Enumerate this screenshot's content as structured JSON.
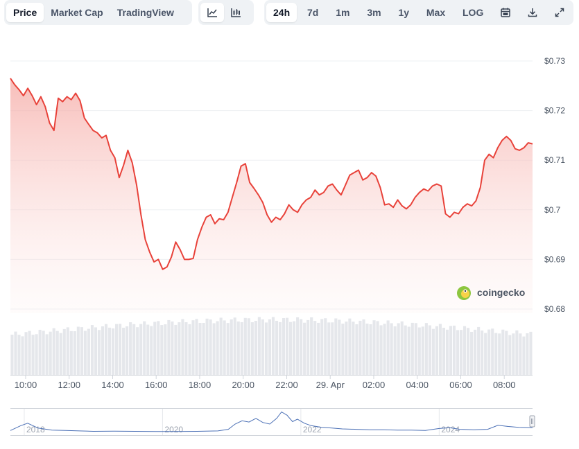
{
  "toolbar": {
    "views": [
      {
        "label": "Price",
        "active": true
      },
      {
        "label": "Market Cap",
        "active": false
      },
      {
        "label": "TradingView",
        "active": false
      }
    ],
    "chart_types": [
      {
        "icon": "line-chart-icon",
        "active": true
      },
      {
        "icon": "candlestick-chart-icon",
        "active": false
      }
    ],
    "ranges": [
      {
        "label": "24h",
        "active": true
      },
      {
        "label": "7d",
        "active": false
      },
      {
        "label": "1m",
        "active": false
      },
      {
        "label": "3m",
        "active": false
      },
      {
        "label": "1y",
        "active": false
      },
      {
        "label": "Max",
        "active": false
      },
      {
        "label": "LOG",
        "active": false
      }
    ],
    "tools": [
      {
        "icon": "calendar-icon"
      },
      {
        "icon": "download-icon"
      },
      {
        "icon": "expand-icon"
      }
    ]
  },
  "watermark": {
    "text": "coingecko",
    "icon": "coingecko-logo-icon"
  },
  "colors": {
    "line": "#e8423a",
    "fill": "#fad4d2",
    "volume": "#e5e7eb",
    "navigator": "#4a6fb5"
  },
  "chart_data": {
    "type": "area",
    "y_ticks": [
      "$0.73",
      "$0.72",
      "$0.71",
      "$0.7",
      "$0.69",
      "$0.68"
    ],
    "y_tick_values": [
      0.73,
      0.72,
      0.71,
      0.7,
      0.69,
      0.68
    ],
    "ylim": [
      0.68,
      0.73
    ],
    "x_ticks": [
      "10:00",
      "12:00",
      "14:00",
      "16:00",
      "18:00",
      "20:00",
      "22:00",
      "29. Apr",
      "02:00",
      "04:00",
      "06:00",
      "08:00"
    ],
    "x_tick_hours": [
      10,
      12,
      14,
      16,
      18,
      20,
      22,
      24,
      26,
      28,
      30,
      32
    ],
    "xlim_hours": [
      9.3,
      33.3
    ],
    "series": [
      {
        "hours": [
          9.3,
          9.5,
          9.7,
          9.9,
          10.1,
          10.3,
          10.5,
          10.7,
          10.9,
          11.1,
          11.3,
          11.5,
          11.7,
          11.9,
          12.1,
          12.3,
          12.5,
          12.7,
          12.9,
          13.1,
          13.3,
          13.5,
          13.7,
          13.9,
          14.1,
          14.3,
          14.5,
          14.7,
          14.9,
          15.1,
          15.3,
          15.5,
          15.7,
          15.9,
          16.1,
          16.3,
          16.5,
          16.7,
          16.9,
          17.1,
          17.3,
          17.5,
          17.7,
          17.9,
          18.1,
          18.3,
          18.5,
          18.7,
          18.9,
          19.1,
          19.3,
          19.5,
          19.7,
          19.9,
          20.1,
          20.3,
          20.5,
          20.7,
          20.9,
          21.1,
          21.3,
          21.5,
          21.7,
          21.9,
          22.1,
          22.3,
          22.5,
          22.7,
          22.9,
          23.1,
          23.3,
          23.5,
          23.7,
          23.9,
          24.1,
          24.3,
          24.5,
          24.7,
          24.9,
          25.1,
          25.3,
          25.5,
          25.7,
          25.9,
          26.1,
          26.3,
          26.5,
          26.7,
          26.9,
          27.1,
          27.3,
          27.5,
          27.7,
          27.9,
          28.1,
          28.3,
          28.5,
          28.7,
          28.9,
          29.1,
          29.3,
          29.5,
          29.7,
          29.9,
          30.1,
          30.3,
          30.5,
          30.7,
          30.9,
          31.1,
          31.3,
          31.5,
          31.7,
          31.9,
          32.1,
          32.3,
          32.5,
          32.7,
          32.9,
          33.1,
          33.3
        ],
        "values": [
          0.7265,
          0.7252,
          0.7242,
          0.723,
          0.7245,
          0.723,
          0.7212,
          0.7228,
          0.7208,
          0.7175,
          0.716,
          0.7225,
          0.7218,
          0.7228,
          0.7222,
          0.7235,
          0.722,
          0.7185,
          0.7172,
          0.716,
          0.7155,
          0.7145,
          0.715,
          0.712,
          0.7105,
          0.7065,
          0.709,
          0.712,
          0.7095,
          0.705,
          0.699,
          0.694,
          0.6915,
          0.6895,
          0.69,
          0.688,
          0.6885,
          0.6905,
          0.6935,
          0.692,
          0.69,
          0.69,
          0.6902,
          0.694,
          0.6965,
          0.6985,
          0.699,
          0.6972,
          0.6982,
          0.698,
          0.6995,
          0.7025,
          0.7055,
          0.7088,
          0.7093,
          0.7055,
          0.7043,
          0.703,
          0.7015,
          0.699,
          0.6975,
          0.6985,
          0.698,
          0.6992,
          0.701,
          0.7,
          0.6995,
          0.701,
          0.702,
          0.7025,
          0.704,
          0.703,
          0.7035,
          0.7048,
          0.7052,
          0.704,
          0.703,
          0.705,
          0.707,
          0.7075,
          0.708,
          0.706,
          0.7065,
          0.7075,
          0.7068,
          0.7045,
          0.701,
          0.7012,
          0.7005,
          0.702,
          0.7008,
          0.7002,
          0.701,
          0.7025,
          0.7035,
          0.7042,
          0.7038,
          0.7048,
          0.7052,
          0.7048,
          0.6992,
          0.6985,
          0.6995,
          0.6992,
          0.7005,
          0.7012,
          0.7008,
          0.7018,
          0.7045,
          0.71,
          0.7112,
          0.7105,
          0.7125,
          0.714,
          0.7148,
          0.714,
          0.7123,
          0.712,
          0.7125,
          0.7135,
          0.7133
        ]
      }
    ],
    "navigator": {
      "x_ticks": [
        "2018",
        "2020",
        "2022",
        "2024"
      ],
      "x_tick_years": [
        2018,
        2020,
        2022,
        2024
      ],
      "xlim_years": [
        2017.8,
        2025.35
      ],
      "years": [
        2017.8,
        2017.95,
        2018.05,
        2018.2,
        2018.4,
        2018.6,
        2018.8,
        2019.0,
        2019.3,
        2019.6,
        2019.9,
        2020.2,
        2020.5,
        2020.8,
        2020.95,
        2021.05,
        2021.15,
        2021.25,
        2021.35,
        2021.45,
        2021.55,
        2021.65,
        2021.72,
        2021.8,
        2021.88,
        2021.95,
        2022.05,
        2022.15,
        2022.3,
        2022.45,
        2022.6,
        2022.8,
        2023.0,
        2023.2,
        2023.4,
        2023.6,
        2023.8,
        2024.0,
        2024.15,
        2024.3,
        2024.5,
        2024.7,
        2024.85,
        2025.0,
        2025.15,
        2025.35
      ],
      "values": [
        0.4,
        1.0,
        1.3,
        0.7,
        0.45,
        0.4,
        0.35,
        0.3,
        0.32,
        0.3,
        0.28,
        0.28,
        0.3,
        0.35,
        0.55,
        1.2,
        1.6,
        1.45,
        1.9,
        1.4,
        1.2,
        1.9,
        2.7,
        2.3,
        1.5,
        1.8,
        1.3,
        1.0,
        0.8,
        0.7,
        0.6,
        0.55,
        0.5,
        0.5,
        0.45,
        0.45,
        0.4,
        0.65,
        0.75,
        0.55,
        0.5,
        0.55,
        1.05,
        0.9,
        0.8,
        0.75
      ]
    }
  }
}
